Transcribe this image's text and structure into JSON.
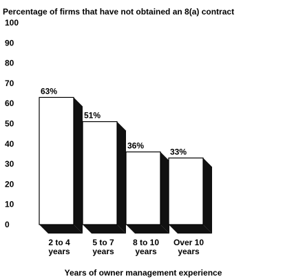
{
  "chart_data": {
    "type": "bar",
    "title": "Percentage of firms that have not obtained an 8(a) contract",
    "xlabel": "Years of owner management experience",
    "ylabel": "",
    "ylim": [
      0,
      100
    ],
    "yticks": [
      0,
      10,
      20,
      30,
      40,
      50,
      60,
      70,
      80,
      90,
      100
    ],
    "categories": [
      [
        "2 to 4",
        "years"
      ],
      [
        "5 to 7",
        "years"
      ],
      [
        "8 to 10",
        "years"
      ],
      [
        "Over 10",
        "years"
      ]
    ],
    "values": [
      63,
      51,
      36,
      33
    ],
    "data_labels": [
      "63%",
      "51%",
      "36%",
      "33%"
    ],
    "style": "3d-bar",
    "grid": false,
    "colors": {
      "bar_face": "#ffffff",
      "bar_shadow": "#111111",
      "bar_outline": "#000000"
    }
  }
}
